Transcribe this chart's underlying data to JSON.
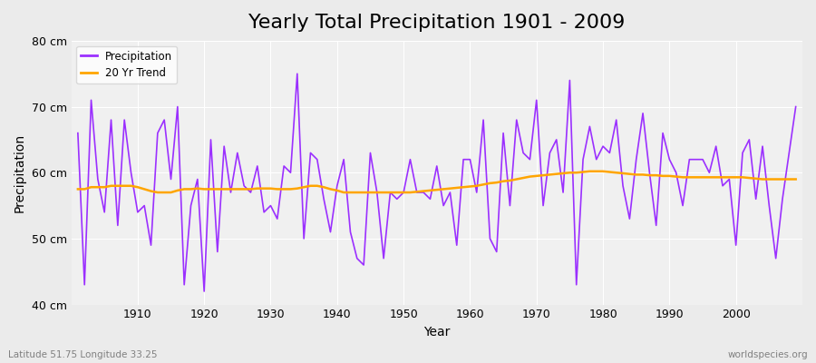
{
  "title": "Yearly Total Precipitation 1901 - 2009",
  "xlabel": "Year",
  "ylabel": "Precipitation",
  "footnote_left": "Latitude 51.75 Longitude 33.25",
  "footnote_right": "worldspecies.org",
  "ylim": [
    40,
    80
  ],
  "yticks": [
    40,
    50,
    60,
    70,
    80
  ],
  "ytick_labels": [
    "40 cm",
    "50 cm",
    "60 cm",
    "70 cm",
    "80 cm"
  ],
  "years": [
    1901,
    1902,
    1903,
    1904,
    1905,
    1906,
    1907,
    1908,
    1909,
    1910,
    1911,
    1912,
    1913,
    1914,
    1915,
    1916,
    1917,
    1918,
    1919,
    1920,
    1921,
    1922,
    1923,
    1924,
    1925,
    1926,
    1927,
    1928,
    1929,
    1930,
    1931,
    1932,
    1933,
    1934,
    1935,
    1936,
    1937,
    1938,
    1939,
    1940,
    1941,
    1942,
    1943,
    1944,
    1945,
    1946,
    1947,
    1948,
    1949,
    1950,
    1951,
    1952,
    1953,
    1954,
    1955,
    1956,
    1957,
    1958,
    1959,
    1960,
    1961,
    1962,
    1963,
    1964,
    1965,
    1966,
    1967,
    1968,
    1969,
    1970,
    1971,
    1972,
    1973,
    1974,
    1975,
    1976,
    1977,
    1978,
    1979,
    1980,
    1981,
    1982,
    1983,
    1984,
    1985,
    1986,
    1987,
    1988,
    1989,
    1990,
    1991,
    1992,
    1993,
    1994,
    1995,
    1996,
    1997,
    1998,
    1999,
    2000,
    2001,
    2002,
    2003,
    2004,
    2005,
    2006,
    2007,
    2008,
    2009
  ],
  "precipitation": [
    66,
    43,
    71,
    59,
    54,
    68,
    52,
    68,
    60,
    54,
    55,
    49,
    66,
    68,
    59,
    70,
    43,
    55,
    59,
    42,
    65,
    48,
    64,
    57,
    63,
    58,
    57,
    61,
    54,
    55,
    53,
    61,
    60,
    75,
    50,
    63,
    62,
    56,
    51,
    58,
    62,
    51,
    47,
    46,
    63,
    57,
    47,
    57,
    56,
    57,
    62,
    57,
    57,
    56,
    61,
    55,
    57,
    49,
    62,
    62,
    57,
    68,
    50,
    48,
    66,
    55,
    68,
    63,
    62,
    71,
    55,
    63,
    65,
    57,
    74,
    43,
    62,
    67,
    62,
    64,
    63,
    68,
    58,
    53,
    62,
    69,
    60,
    52,
    66,
    62,
    60,
    55,
    62,
    62,
    62,
    60,
    64,
    58,
    59,
    49,
    63,
    65,
    56,
    64,
    55,
    47,
    56,
    63,
    70
  ],
  "trend": [
    57.5,
    57.5,
    57.8,
    57.8,
    57.8,
    58.0,
    58.0,
    58.0,
    58.0,
    57.8,
    57.5,
    57.2,
    57.0,
    57.0,
    57.0,
    57.3,
    57.5,
    57.5,
    57.6,
    57.5,
    57.5,
    57.5,
    57.5,
    57.5,
    57.5,
    57.5,
    57.5,
    57.6,
    57.6,
    57.6,
    57.5,
    57.5,
    57.5,
    57.6,
    57.8,
    58.0,
    58.0,
    57.8,
    57.5,
    57.3,
    57.0,
    57.0,
    57.0,
    57.0,
    57.0,
    57.0,
    57.0,
    57.0,
    57.0,
    57.0,
    57.0,
    57.1,
    57.2,
    57.3,
    57.4,
    57.5,
    57.6,
    57.7,
    57.8,
    57.9,
    58.0,
    58.2,
    58.4,
    58.5,
    58.7,
    58.8,
    59.0,
    59.2,
    59.4,
    59.5,
    59.6,
    59.7,
    59.8,
    59.9,
    60.0,
    60.0,
    60.1,
    60.2,
    60.2,
    60.2,
    60.1,
    60.0,
    59.9,
    59.8,
    59.7,
    59.7,
    59.6,
    59.6,
    59.5,
    59.5,
    59.4,
    59.3,
    59.3,
    59.3,
    59.3,
    59.3,
    59.3,
    59.3,
    59.3,
    59.3,
    59.3,
    59.2,
    59.1,
    59.0,
    59.0,
    59.0,
    59.0,
    59.0,
    59.0
  ],
  "precip_color": "#9B30FF",
  "trend_color": "#FFA500",
  "background_color": "#EBEBEB",
  "plot_bg_color": "#F0F0F0",
  "grid_color": "#FFFFFF",
  "title_fontsize": 16,
  "label_fontsize": 10,
  "tick_fontsize": 9
}
